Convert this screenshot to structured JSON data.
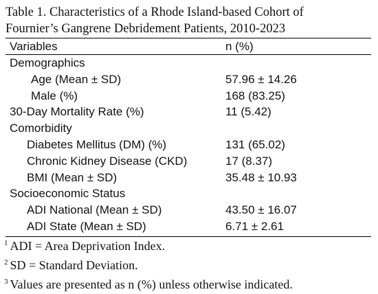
{
  "table": {
    "title_lines": [
      "Table 1. Characteristics of a Rhode Island-based Cohort of",
      "Fournier’s Gangrene Debridement Patients, 2010-2023"
    ],
    "header": [
      "Variables",
      "n (%)"
    ],
    "sections": [
      {
        "label": "Demographics",
        "rows": [
          {
            "label": "Age (Mean ± SD)",
            "value": "57.96 ± 14.26"
          },
          {
            "label": "Male (%)",
            "value": "168 (83.25)"
          }
        ]
      },
      {
        "label": "30-Day Mortality Rate (%)",
        "value": "11 (5.42)"
      },
      {
        "label": "Comorbidity",
        "rows": [
          {
            "label": "Diabetes Mellitus (DM) (%)",
            "value": "131 (65.02)"
          },
          {
            "label": "Chronic Kidney Disease (CKD)",
            "value": "17 (8.37)"
          },
          {
            "label": "BMI (Mean ± SD)",
            "value": "35.48 ± 10.93"
          }
        ]
      },
      {
        "label": "Socioeconomic Status",
        "rows": [
          {
            "label": "ADI National (Mean ± SD)",
            "value": "43.50 ± 16.07"
          },
          {
            "label": "ADI State (Mean ± SD)",
            "value": "6.71 ± 2.61"
          }
        ]
      }
    ],
    "footnotes": [
      {
        "marker": "1",
        "text": "ADI = Area Deprivation Index."
      },
      {
        "marker": "2",
        "text": "SD = Standard Deviation."
      },
      {
        "marker": "3",
        "text": "Values are presented as n (%) unless otherwise indicated."
      }
    ]
  }
}
